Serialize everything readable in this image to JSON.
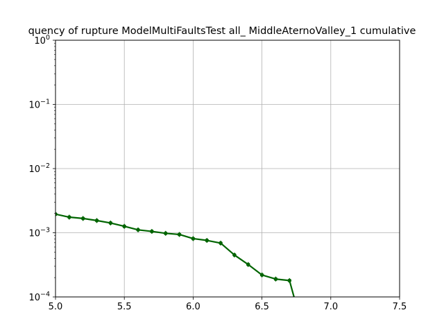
{
  "chart_data": {
    "type": "line",
    "title": "quency of rupture ModelMultiFaultsTest all_ MiddleAternoValley_1 cumulative",
    "xlabel": "",
    "ylabel": "",
    "xlim": [
      5.0,
      7.5
    ],
    "ylim": [
      0.0001,
      1
    ],
    "yscale": "log",
    "grid": true,
    "x_ticks": [
      {
        "value": 5.0,
        "label": "5.0"
      },
      {
        "value": 5.5,
        "label": "5.5"
      },
      {
        "value": 6.0,
        "label": "6.0"
      },
      {
        "value": 6.5,
        "label": "6.5"
      },
      {
        "value": 7.0,
        "label": "7.0"
      },
      {
        "value": 7.5,
        "label": "7.5"
      }
    ],
    "y_ticks": [
      {
        "value": 0.0001,
        "base": "10",
        "exp": "−4"
      },
      {
        "value": 0.001,
        "base": "10",
        "exp": "−3"
      },
      {
        "value": 0.01,
        "base": "10",
        "exp": "−2"
      },
      {
        "value": 0.1,
        "base": "10",
        "exp": "−1"
      },
      {
        "value": 1,
        "base": "10",
        "exp": "0"
      }
    ],
    "series": [
      {
        "color": "#006400",
        "x": [
          5.0,
          5.1,
          5.2,
          5.3,
          5.4,
          5.5,
          5.6,
          5.7,
          5.8,
          5.9,
          6.0,
          6.1,
          6.2,
          6.3,
          6.4,
          6.5,
          6.6,
          6.7,
          6.8
        ],
        "y": [
          0.00195,
          0.00175,
          0.00167,
          0.00155,
          0.00142,
          0.00126,
          0.00111,
          0.00105,
          0.00098,
          0.00094,
          0.00081,
          0.00076,
          0.00069,
          0.00045,
          0.00032,
          0.00022,
          0.00019,
          0.00018,
          3e-05
        ]
      }
    ]
  }
}
